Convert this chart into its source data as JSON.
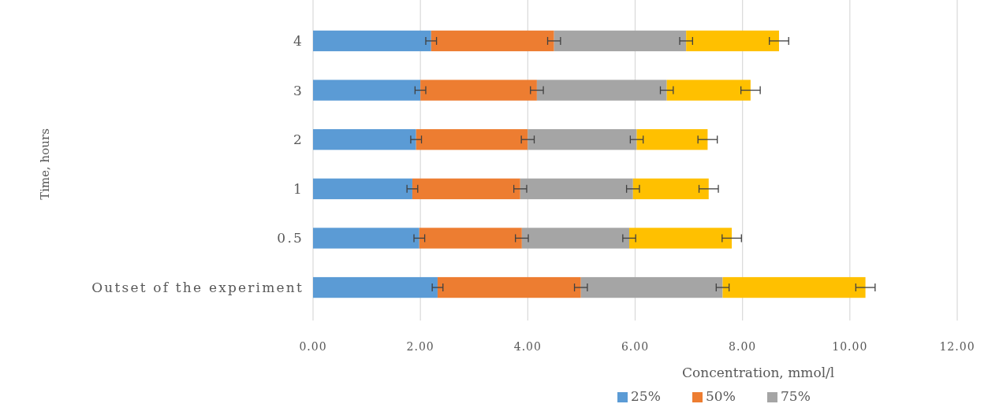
{
  "chart_data": {
    "type": "bar",
    "orientation": "horizontal",
    "stacked": true,
    "xlabel": "Concentration, mmol/l",
    "ylabel": "Time, hours",
    "categories": [
      "4",
      "3",
      "2",
      "1",
      "0.5",
      "Outset of the experiment"
    ],
    "series": [
      {
        "name": "25%",
        "color": "#5b9bd5",
        "values": [
          2.2,
          2.0,
          1.92,
          1.85,
          1.98,
          2.32
        ],
        "errors": [
          0.1,
          0.1,
          0.1,
          0.1,
          0.1,
          0.1
        ]
      },
      {
        "name": "50%",
        "color": "#ed7d31",
        "values": [
          2.29,
          2.17,
          2.08,
          2.01,
          1.91,
          2.67
        ],
        "errors": [
          0.12,
          0.12,
          0.12,
          0.12,
          0.12,
          0.12
        ]
      },
      {
        "name": "75%",
        "color": "#a5a5a5",
        "values": [
          2.46,
          2.42,
          2.03,
          2.1,
          2.0,
          2.64
        ],
        "errors": [
          0.12,
          0.12,
          0.12,
          0.12,
          0.12,
          0.12
        ]
      },
      {
        "color": "#ffc000",
        "values": [
          1.73,
          1.56,
          1.32,
          1.41,
          1.91,
          2.66
        ],
        "errors": [
          0.18,
          0.18,
          0.18,
          0.18,
          0.18,
          0.18
        ]
      }
    ],
    "xlim": [
      0,
      12
    ],
    "xticks": [
      {
        "value": 0,
        "label": "0.00"
      },
      {
        "value": 2,
        "label": "2.00"
      },
      {
        "value": 4,
        "label": "4.00"
      },
      {
        "value": 6,
        "label": "6.00"
      },
      {
        "value": 8,
        "label": "8.00"
      },
      {
        "value": 10,
        "label": "10.00"
      },
      {
        "value": 12,
        "label": "12.00"
      }
    ],
    "grid": "x",
    "legend": "bottom"
  }
}
